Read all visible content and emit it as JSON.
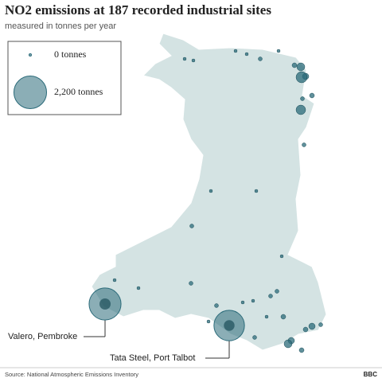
{
  "chart_data": {
    "type": "bubble-map",
    "title": "NO2 emissions at 187 recorded industrial sites",
    "subtitle": "measured in tonnes per year",
    "legend_sizes": [
      {
        "value": 0,
        "label": "0 tonnes"
      },
      {
        "value": 2200,
        "label": "2,200 tonnes"
      }
    ],
    "sites": [
      {
        "name": "Valero, Pembroke",
        "value": 2100
      },
      {
        "name": "Tata Steel, Port Talbot",
        "value": 1900
      }
    ],
    "color": "#2b6b7a",
    "source": "Source: National Atmospheric Emissions Inventory",
    "brand": "BBC"
  }
}
